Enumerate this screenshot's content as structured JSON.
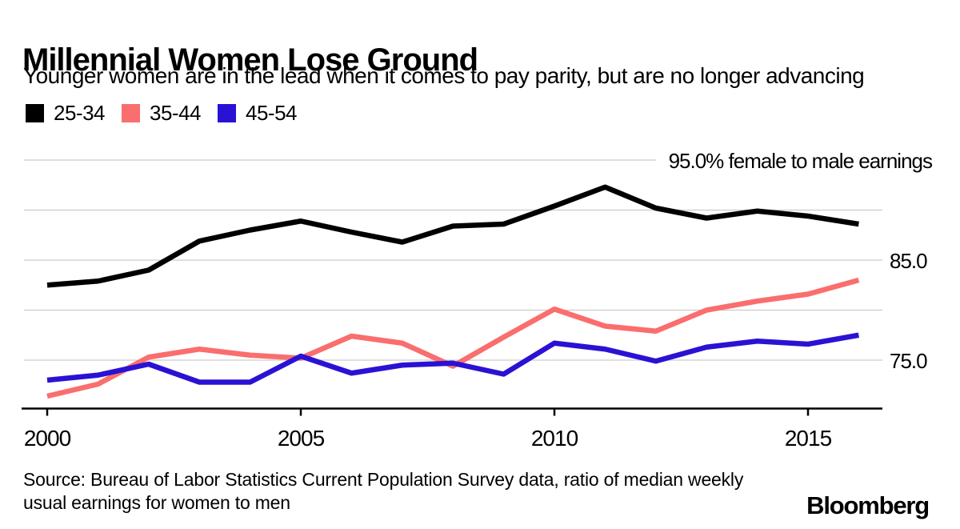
{
  "header": {
    "title": "Millennial Women Lose Ground",
    "subtitle": "Younger women are in the lead when it comes to pay parity, but are no longer advancing"
  },
  "legend": {
    "items": [
      {
        "label": "25-34",
        "color": "#000000"
      },
      {
        "label": "35-44",
        "color": "#fa6e6e"
      },
      {
        "label": "45-54",
        "color": "#2a12d4"
      }
    ]
  },
  "chart_data": {
    "type": "line",
    "title": "Millennial Women Lose Ground",
    "x": [
      2000,
      2001,
      2002,
      2003,
      2004,
      2005,
      2006,
      2007,
      2008,
      2009,
      2010,
      2011,
      2012,
      2013,
      2014,
      2015,
      2016
    ],
    "series": [
      {
        "name": "25-34",
        "color": "#000000",
        "values": [
          82.5,
          82.9,
          84.0,
          86.9,
          88.0,
          88.9,
          87.8,
          86.8,
          88.4,
          88.6,
          90.4,
          92.3,
          90.2,
          89.2,
          89.9,
          89.4,
          88.6
        ]
      },
      {
        "name": "35-44",
        "color": "#fa6e6e",
        "values": [
          71.4,
          72.6,
          75.3,
          76.1,
          75.5,
          75.2,
          77.4,
          76.7,
          74.4,
          77.3,
          80.1,
          78.4,
          77.9,
          80.0,
          80.9,
          81.6,
          83.0
        ]
      },
      {
        "name": "45-54",
        "color": "#2a12d4",
        "values": [
          73.0,
          73.5,
          74.6,
          72.8,
          72.8,
          75.4,
          73.7,
          74.5,
          74.7,
          73.6,
          76.7,
          76.1,
          74.9,
          76.3,
          76.9,
          76.6,
          77.5
        ]
      }
    ],
    "xlabel": "",
    "ylabel": "% female to male earnings",
    "ylim": [
      70,
      96
    ],
    "grid": true,
    "gridline_color": "#cccccc",
    "legend_position": "top-left",
    "y_gridlines": [
      95,
      90,
      85,
      80,
      75
    ],
    "y_axis_annotation": "95.0% female to male earnings",
    "y_tick_labels": [
      {
        "value": 85,
        "label": "85.0"
      },
      {
        "value": 75,
        "label": "75.0"
      }
    ],
    "x_ticks": [
      {
        "value": 2000,
        "label": "2000"
      },
      {
        "value": 2005,
        "label": "2005"
      },
      {
        "value": 2010,
        "label": "2010"
      },
      {
        "value": 2015,
        "label": "2015"
      }
    ]
  },
  "footer": {
    "source_line1": "Source: Bureau of Labor Statistics Current Population Survey data, ratio of median weekly",
    "source_line2": "usual earnings for women to men",
    "brand": "Bloomberg"
  }
}
